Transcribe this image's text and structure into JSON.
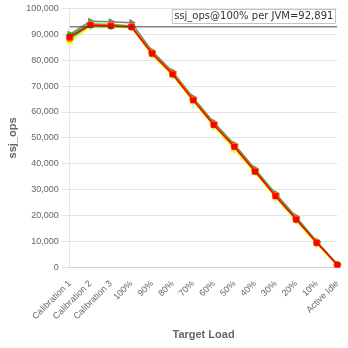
{
  "chart_data": {
    "type": "line",
    "annotation": "ssj_ops@100% per JVM=92,891",
    "xlabel": "Target Load",
    "ylabel": "ssj_ops",
    "categories": [
      "Calibration 1",
      "Calibration 2",
      "Calibration 3",
      "100%",
      "90%",
      "80%",
      "70%",
      "60%",
      "50%",
      "40%",
      "30%",
      "20%",
      "10%",
      "Active Idle"
    ],
    "ylim": [
      0,
      100000
    ],
    "yticks": [
      0,
      {
        "value": 10000,
        "label": "10,000"
      },
      {
        "value": 20000,
        "label": "20,000"
      },
      {
        "value": 30000,
        "label": "30,000"
      },
      {
        "value": 40000,
        "label": "40,000"
      },
      {
        "value": 50000,
        "label": "50,000"
      },
      {
        "value": 60000,
        "label": "60,000"
      },
      {
        "value": 70000,
        "label": "70,000"
      },
      {
        "value": 80000,
        "label": "80,000"
      },
      {
        "value": 90000,
        "label": "90,000"
      },
      {
        "value": 100000,
        "label": "100,000"
      }
    ],
    "hline": 92891,
    "grid": "y",
    "series": [
      {
        "color": "#FF0000",
        "marker": "square",
        "values": [
          89000,
          93500,
          93200,
          92800,
          82500,
          74500,
          64500,
          55000,
          46500,
          37000,
          27500,
          18500,
          9500,
          1000
        ]
      },
      {
        "color": "#FF6600",
        "marker": "circle",
        "values": [
          88500,
          93800,
          93500,
          93000,
          82800,
          74800,
          64800,
          55200,
          46800,
          37200,
          27700,
          18700,
          9600,
          900
        ]
      },
      {
        "color": "#FFFF00",
        "marker": "triangle_up",
        "values": [
          87000,
          93000,
          92800,
          92500,
          82000,
          74000,
          64000,
          54500,
          45500,
          36500,
          27000,
          18000,
          9000,
          800
        ]
      },
      {
        "color": "#00CC00",
        "marker": "diamond",
        "values": [
          89500,
          94000,
          93800,
          93200,
          83000,
          75000,
          65000,
          55500,
          47000,
          37500,
          28000,
          19000,
          9800,
          1100
        ]
      },
      {
        "color": "#00FFFF",
        "marker": "triangle_down",
        "values": [
          88000,
          93200,
          93000,
          92700,
          82200,
          74200,
          64200,
          54700,
          45800,
          36800,
          27200,
          18200,
          9200,
          850
        ]
      },
      {
        "color": "#FF00FF",
        "marker": "pentagon",
        "values": [
          88800,
          93600,
          93400,
          92900,
          82600,
          74600,
          64600,
          55100,
          46600,
          37100,
          27600,
          18600,
          9400,
          950
        ]
      },
      {
        "color": "#808080",
        "marker": "triangle_right",
        "values": [
          90000,
          95000,
          94800,
          94500,
          83500,
          75500,
          65500,
          56000,
          47500,
          38000,
          28500,
          19500,
          10000,
          1200
        ]
      }
    ]
  }
}
